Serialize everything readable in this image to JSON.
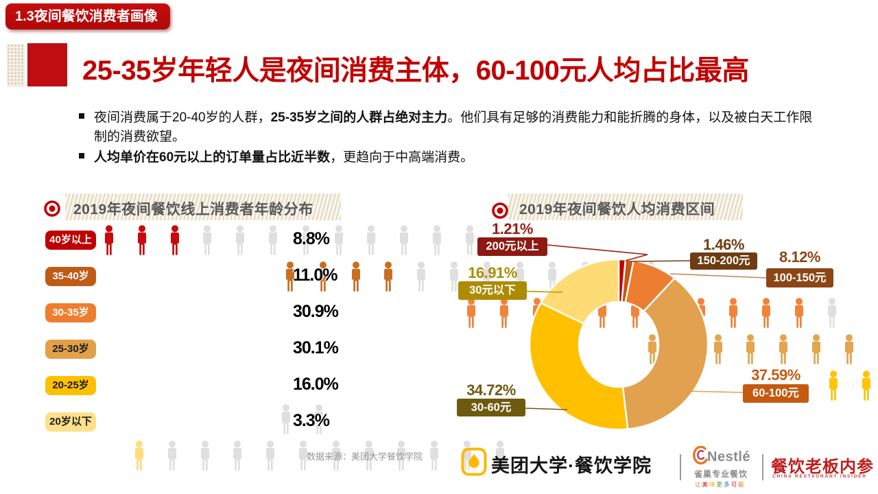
{
  "header": {
    "badge": "1.3夜间餐饮消费者画像",
    "badge_bg": "#C00000"
  },
  "title": {
    "text": "25-35岁年轻人是夜间消费主体，60-100元人均占比最高",
    "color": "#C00000"
  },
  "bullets": [
    {
      "segments": [
        {
          "text": "夜间消费属于20-40岁的人群，",
          "bold": false
        },
        {
          "text": "25-35岁之间的人群占绝对主力",
          "bold": true
        },
        {
          "text": "。他们具有足够的消费能力和能折腾的身体，以及被白天工作限制的消费欲望。",
          "bold": false
        }
      ]
    },
    {
      "segments": [
        {
          "text": "人均单价在60元以上的订单量占比近半数",
          "bold": true
        },
        {
          "text": "，更趋向于中高端消费。",
          "bold": false
        }
      ]
    }
  ],
  "left_chart": {
    "title": "2019年夜间餐饮线上消费者年龄分布",
    "icons_per_row": 12,
    "unit_percent": 2.75,
    "empty_icon_color": "#DFDFDF",
    "rows": [
      {
        "label": "40岁以上",
        "display": "8.8%",
        "value": 8.8,
        "badge_bg": "#C00000",
        "badge_fg": "#FFFFFF",
        "icon_color": "#C9090B"
      },
      {
        "label": "35-40岁",
        "display": "11.0%",
        "value": 11.0,
        "badge_bg": "#C05A15",
        "badge_fg": "#FFFFFF",
        "icon_color": "#C96F22"
      },
      {
        "label": "30-35岁",
        "display": "30.9%",
        "value": 30.9,
        "badge_bg": "#EF7D2F",
        "badge_fg": "#FFFFFF",
        "icon_color": "#F1833B"
      },
      {
        "label": "25-30岁",
        "display": "30.1%",
        "value": 30.1,
        "badge_bg": "#E2A146",
        "badge_fg": "#1A1A1A",
        "icon_color": "#E4A54E"
      },
      {
        "label": "20-25岁",
        "display": "16.0%",
        "value": 16.0,
        "badge_bg": "#FFC000",
        "badge_fg": "#1A1A1A",
        "icon_color": "#FFC409"
      },
      {
        "label": "20岁以下",
        "display": "3.3%",
        "value": 3.3,
        "badge_bg": "#FFE08A",
        "badge_fg": "#1A1A1A",
        "icon_color": "#FFDC7E"
      }
    ]
  },
  "right_chart": {
    "title": "2019年夜间餐饮人均消费区间",
    "labels": [
      {
        "label": "200元以上",
        "value_display": "1.21%",
        "value_color": "#9A1B12",
        "badge_bg": "#8C1A12",
        "badge_fg": "#FFFFFF",
        "leader_color": "#9A1B12"
      },
      {
        "label": "150-200元",
        "value_display": "1.46%",
        "value_color": "#6E3C12",
        "badge_bg": "#6E3C12",
        "badge_fg": "#FFFFFF",
        "leader_color": "#6E3C12"
      },
      {
        "label": "100-150元",
        "value_display": "8.12%",
        "value_color": "#8C4616",
        "badge_bg": "#8C4616",
        "badge_fg": "#FFFFFF",
        "leader_color": "#B98D5F"
      },
      {
        "label": "60-100元",
        "value_display": "37.59%",
        "value_color": "#C5590F",
        "badge_bg": "#C5590F",
        "badge_fg": "#FFFFFF",
        "leader_color": "#E2A14E"
      },
      {
        "label": "30-60元",
        "value_display": "34.72%",
        "value_color": "#6E5A0F",
        "badge_bg": "#6E5A0F",
        "badge_fg": "#FFFFFF",
        "leader_color": "#6E5A0F"
      },
      {
        "label": "30元以下",
        "value_display": "16.91%",
        "value_color": "#AD8B00",
        "badge_bg": "#AD8B00",
        "badge_fg": "#FFFFFF",
        "leader_color": "#BF9000"
      }
    ]
  },
  "chart_data": [
    {
      "type": "bar",
      "subtype": "pictogram",
      "title": "2019年夜间餐饮线上消费者年龄分布",
      "categories": [
        "40岁以上",
        "35-40岁",
        "30-35岁",
        "25-30岁",
        "20-25岁",
        "20岁以下"
      ],
      "values": [
        8.8,
        11.0,
        30.9,
        30.1,
        16.0,
        3.3
      ],
      "unit": "%",
      "icons_per_row": 12,
      "percent_per_icon": 2.75
    },
    {
      "type": "pie",
      "subtype": "donut",
      "title": "2019年夜间餐饮人均消费区间",
      "start_angle_deg": 0,
      "direction": "clockwise",
      "inner_radius_ratio": 0.47,
      "slices": [
        {
          "label": "200元以上",
          "value": 1.21,
          "color": "#C00000"
        },
        {
          "label": "150-200元",
          "value": 1.46,
          "color": "#C5590F"
        },
        {
          "label": "100-150元",
          "value": 8.12,
          "color": "#ED7D31"
        },
        {
          "label": "60-100元",
          "value": 37.59,
          "color": "#E2A14E"
        },
        {
          "label": "30-60元",
          "value": 34.72,
          "color": "#FFC000"
        },
        {
          "label": "30元以下",
          "value": 16.91,
          "color": "#FFDB75"
        }
      ]
    }
  ],
  "footer": {
    "source": "数据来源：美团大学餐饮学院",
    "meituan_logo_text": "美团大学·餐饮学院",
    "nestle_word": "Nestlé",
    "nestle_sub": "雀巢专业餐饮",
    "nestle_tagline": "让美味更多可能",
    "insider_title": "餐饮老板内参",
    "insider_sub": "CHINA RESTAURANT INSIDER",
    "meituan_yellow": "#FFB800",
    "nestle_orange": "#E87722"
  }
}
